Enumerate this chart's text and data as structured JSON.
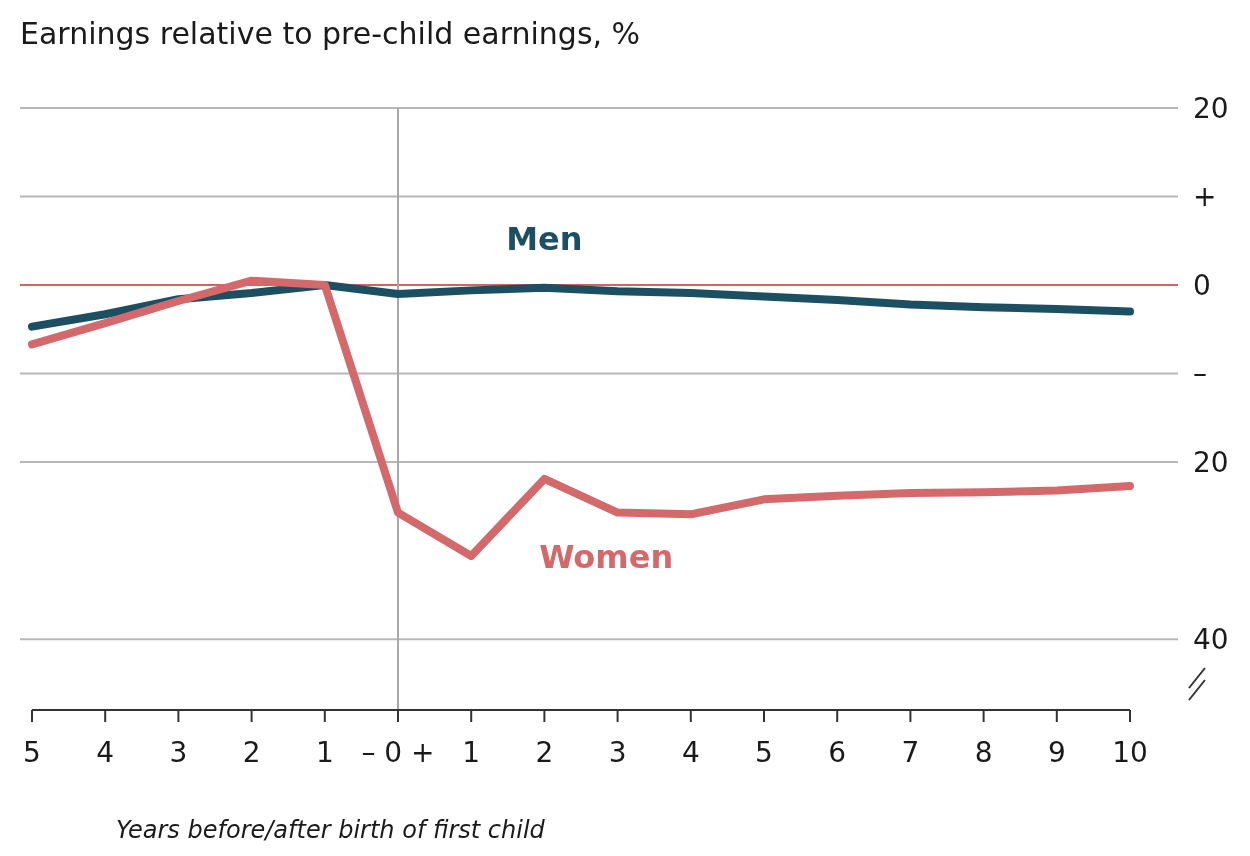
{
  "chart_data": {
    "type": "line",
    "title": "Earnings relative to pre-child earnings, %",
    "xlabel": "Years before/after birth of first child",
    "x": [
      -5,
      -4,
      -3,
      -2,
      -1,
      0,
      1,
      2,
      3,
      4,
      5,
      6,
      7,
      8,
      9,
      10
    ],
    "xlim": [
      -5,
      10
    ],
    "xticks": [
      {
        "value": -5,
        "label": "5"
      },
      {
        "value": -4,
        "label": "4"
      },
      {
        "value": -3,
        "label": "3"
      },
      {
        "value": -2,
        "label": "2"
      },
      {
        "value": -1,
        "label": "1"
      },
      {
        "value": 0,
        "label": "– 0 +"
      },
      1,
      2,
      3,
      4,
      5,
      6,
      7,
      8,
      9,
      10
    ],
    "ylim": [
      -48,
      20
    ],
    "yticks": [
      20,
      {
        "value": 10,
        "label": "+"
      },
      0,
      {
        "value": -10,
        "label": "–"
      },
      {
        "value": -20,
        "label": "20"
      },
      {
        "value": -40,
        "label": "40"
      }
    ],
    "grid": "y",
    "ref_lines": [
      {
        "axis": "y",
        "value": 0,
        "color": "#d9625e"
      },
      {
        "axis": "x",
        "value": 0,
        "color": "#a9a9a9"
      }
    ],
    "series": [
      {
        "name": "Men",
        "color": "#1d4f63",
        "values": [
          -4.7,
          -3.3,
          -1.6,
          -0.9,
          0,
          -1.0,
          -0.6,
          -0.3,
          -0.7,
          -0.9,
          -1.3,
          -1.7,
          -2.2,
          -2.5,
          -2.7,
          -3.0
        ]
      },
      {
        "name": "Women",
        "color": "#d4696b",
        "values": [
          -6.7,
          -4.3,
          -1.8,
          0.5,
          0,
          -25.7,
          -30.6,
          -21.9,
          -25.7,
          -25.9,
          -24.2,
          -23.8,
          -23.5,
          -23.4,
          -23.2,
          -22.7
        ]
      }
    ]
  }
}
